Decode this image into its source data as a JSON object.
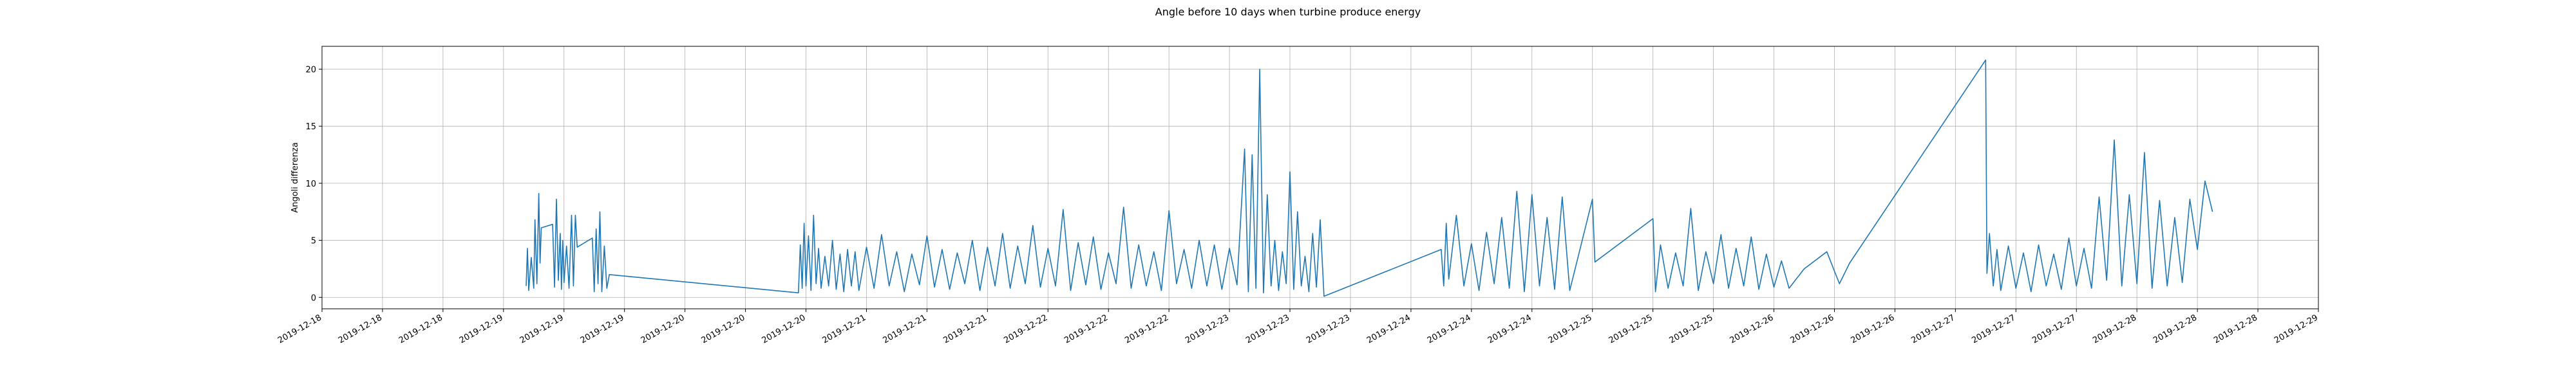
{
  "chart_data": {
    "type": "line",
    "title": "Angle before 10 days when turbine produce energy",
    "xlabel": "",
    "ylabel": "Angoli differenza",
    "grid": true,
    "line_color": "#1f77b4",
    "x_range": [
      "2019-12-18 00:00",
      "2019-12-29 00:00"
    ],
    "ylim": [
      -1,
      22
    ],
    "y_ticks": [
      0,
      5,
      10,
      15,
      20
    ],
    "x_tick_labels": [
      "2019-12-18",
      "2019-12-18",
      "2019-12-18",
      "2019-12-19",
      "2019-12-19",
      "2019-12-19",
      "2019-12-20",
      "2019-12-20",
      "2019-12-20",
      "2019-12-21",
      "2019-12-21",
      "2019-12-21",
      "2019-12-22",
      "2019-12-22",
      "2019-12-22",
      "2019-12-23",
      "2019-12-23",
      "2019-12-23",
      "2019-12-24",
      "2019-12-24",
      "2019-12-24",
      "2019-12-25",
      "2019-12-25",
      "2019-12-25",
      "2019-12-26",
      "2019-12-26",
      "2019-12-26",
      "2019-12-27",
      "2019-12-27",
      "2019-12-27",
      "2019-12-28",
      "2019-12-28",
      "2019-12-28",
      "2019-12-29"
    ],
    "series": [
      {
        "points": [
          [
            "2019-12-19 03:00",
            1.0
          ],
          [
            "2019-12-19 03:10",
            4.3
          ],
          [
            "2019-12-19 03:20",
            0.6
          ],
          [
            "2019-12-19 03:40",
            3.5
          ],
          [
            "2019-12-19 04:00",
            0.8
          ],
          [
            "2019-12-19 04:10",
            6.8
          ],
          [
            "2019-12-19 04:25",
            1.2
          ],
          [
            "2019-12-19 04:40",
            9.1
          ],
          [
            "2019-12-19 04:50",
            3.0
          ],
          [
            "2019-12-19 05:00",
            6.1
          ],
          [
            "2019-12-19 06:30",
            6.4
          ],
          [
            "2019-12-19 06:45",
            0.9
          ],
          [
            "2019-12-19 07:00",
            8.6
          ],
          [
            "2019-12-19 07:15",
            1.5
          ],
          [
            "2019-12-19 07:30",
            5.6
          ],
          [
            "2019-12-19 07:40",
            0.7
          ],
          [
            "2019-12-19 07:50",
            5.0
          ],
          [
            "2019-12-19 08:00",
            1.3
          ],
          [
            "2019-12-19 08:20",
            4.5
          ],
          [
            "2019-12-19 08:40",
            0.8
          ],
          [
            "2019-12-19 09:00",
            7.2
          ],
          [
            "2019-12-19 09:15",
            1.0
          ],
          [
            "2019-12-19 09:30",
            7.2
          ],
          [
            "2019-12-19 09:45",
            4.4
          ],
          [
            "2019-12-19 11:45",
            5.2
          ],
          [
            "2019-12-19 12:00",
            0.5
          ],
          [
            "2019-12-19 12:15",
            6.0
          ],
          [
            "2019-12-19 12:30",
            1.2
          ],
          [
            "2019-12-19 12:45",
            7.5
          ],
          [
            "2019-12-19 13:00",
            0.5
          ],
          [
            "2019-12-19 13:20",
            4.5
          ],
          [
            "2019-12-19 13:40",
            0.8
          ],
          [
            "2019-12-19 14:00",
            2.0
          ],
          [
            "2019-12-20 15:00",
            0.4
          ],
          [
            "2019-12-20 15:15",
            4.6
          ],
          [
            "2019-12-20 15:30",
            0.8
          ],
          [
            "2019-12-20 15:45",
            6.5
          ],
          [
            "2019-12-20 16:00",
            1.0
          ],
          [
            "2019-12-20 16:20",
            5.4
          ],
          [
            "2019-12-20 16:40",
            0.6
          ],
          [
            "2019-12-20 17:00",
            7.2
          ],
          [
            "2019-12-20 17:20",
            1.2
          ],
          [
            "2019-12-20 17:40",
            4.3
          ],
          [
            "2019-12-20 18:00",
            0.8
          ],
          [
            "2019-12-20 18:30",
            3.6
          ],
          [
            "2019-12-20 19:00",
            1.0
          ],
          [
            "2019-12-20 19:30",
            5.0
          ],
          [
            "2019-12-20 20:00",
            0.7
          ],
          [
            "2019-12-20 20:30",
            3.8
          ],
          [
            "2019-12-20 21:00",
            0.5
          ],
          [
            "2019-12-20 21:30",
            4.2
          ],
          [
            "2019-12-20 22:00",
            1.0
          ],
          [
            "2019-12-20 22:30",
            4.0
          ],
          [
            "2019-12-20 23:00",
            0.6
          ],
          [
            "2019-12-21 00:00",
            4.4
          ],
          [
            "2019-12-21 01:00",
            0.8
          ],
          [
            "2019-12-21 02:00",
            5.5
          ],
          [
            "2019-12-21 03:00",
            1.0
          ],
          [
            "2019-12-21 04:00",
            4.0
          ],
          [
            "2019-12-21 05:00",
            0.5
          ],
          [
            "2019-12-21 06:00",
            3.8
          ],
          [
            "2019-12-21 07:00",
            1.1
          ],
          [
            "2019-12-21 08:00",
            5.4
          ],
          [
            "2019-12-21 09:00",
            0.9
          ],
          [
            "2019-12-21 10:00",
            4.2
          ],
          [
            "2019-12-21 11:00",
            0.7
          ],
          [
            "2019-12-21 12:00",
            3.9
          ],
          [
            "2019-12-21 13:00",
            1.2
          ],
          [
            "2019-12-21 14:00",
            5.0
          ],
          [
            "2019-12-21 15:00",
            0.6
          ],
          [
            "2019-12-21 16:00",
            4.4
          ],
          [
            "2019-12-21 17:00",
            1.0
          ],
          [
            "2019-12-21 18:00",
            5.6
          ],
          [
            "2019-12-21 19:00",
            0.8
          ],
          [
            "2019-12-21 20:00",
            4.5
          ],
          [
            "2019-12-21 21:00",
            1.2
          ],
          [
            "2019-12-21 22:00",
            6.3
          ],
          [
            "2019-12-21 23:00",
            0.9
          ],
          [
            "2019-12-22 00:00",
            4.3
          ],
          [
            "2019-12-22 01:00",
            1.0
          ],
          [
            "2019-12-22 02:00",
            7.7
          ],
          [
            "2019-12-22 03:00",
            0.6
          ],
          [
            "2019-12-22 04:00",
            4.8
          ],
          [
            "2019-12-22 05:00",
            1.1
          ],
          [
            "2019-12-22 06:00",
            5.3
          ],
          [
            "2019-12-22 07:00",
            0.7
          ],
          [
            "2019-12-22 08:00",
            3.9
          ],
          [
            "2019-12-22 09:00",
            1.2
          ],
          [
            "2019-12-22 10:00",
            7.9
          ],
          [
            "2019-12-22 11:00",
            0.8
          ],
          [
            "2019-12-22 12:00",
            4.6
          ],
          [
            "2019-12-22 13:00",
            1.0
          ],
          [
            "2019-12-22 14:00",
            4.0
          ],
          [
            "2019-12-22 15:00",
            0.6
          ],
          [
            "2019-12-22 16:00",
            7.6
          ],
          [
            "2019-12-22 17:00",
            1.2
          ],
          [
            "2019-12-22 18:00",
            4.2
          ],
          [
            "2019-12-22 19:00",
            0.8
          ],
          [
            "2019-12-22 20:00",
            5.0
          ],
          [
            "2019-12-22 21:00",
            1.0
          ],
          [
            "2019-12-22 22:00",
            4.6
          ],
          [
            "2019-12-22 23:00",
            0.7
          ],
          [
            "2019-12-23 00:00",
            4.3
          ],
          [
            "2019-12-23 01:00",
            1.1
          ],
          [
            "2019-12-23 02:00",
            13.0
          ],
          [
            "2019-12-23 02:30",
            0.5
          ],
          [
            "2019-12-23 03:00",
            12.5
          ],
          [
            "2019-12-23 03:30",
            0.8
          ],
          [
            "2019-12-23 04:00",
            20.0
          ],
          [
            "2019-12-23 04:30",
            0.4
          ],
          [
            "2019-12-23 05:00",
            9.0
          ],
          [
            "2019-12-23 05:30",
            1.0
          ],
          [
            "2019-12-23 06:00",
            5.0
          ],
          [
            "2019-12-23 06:30",
            0.6
          ],
          [
            "2019-12-23 07:00",
            4.0
          ],
          [
            "2019-12-23 07:30",
            1.2
          ],
          [
            "2019-12-23 08:00",
            11.0
          ],
          [
            "2019-12-23 08:30",
            0.7
          ],
          [
            "2019-12-23 09:00",
            7.5
          ],
          [
            "2019-12-23 09:30",
            1.0
          ],
          [
            "2019-12-23 10:00",
            3.6
          ],
          [
            "2019-12-23 10:30",
            0.5
          ],
          [
            "2019-12-23 11:00",
            5.6
          ],
          [
            "2019-12-23 11:30",
            0.9
          ],
          [
            "2019-12-23 12:00",
            6.8
          ],
          [
            "2019-12-23 12:30",
            0.1
          ],
          [
            "2019-12-24 04:00",
            4.2
          ],
          [
            "2019-12-24 04:20",
            1.0
          ],
          [
            "2019-12-24 04:40",
            6.5
          ],
          [
            "2019-12-24 05:00",
            1.6
          ],
          [
            "2019-12-24 06:00",
            7.2
          ],
          [
            "2019-12-24 07:00",
            1.0
          ],
          [
            "2019-12-24 08:00",
            4.7
          ],
          [
            "2019-12-24 09:00",
            0.6
          ],
          [
            "2019-12-24 10:00",
            5.7
          ],
          [
            "2019-12-24 11:00",
            1.2
          ],
          [
            "2019-12-24 12:00",
            7.0
          ],
          [
            "2019-12-24 13:00",
            0.8
          ],
          [
            "2019-12-24 14:00",
            9.3
          ],
          [
            "2019-12-24 15:00",
            0.5
          ],
          [
            "2019-12-24 16:00",
            9.0
          ],
          [
            "2019-12-24 17:00",
            1.0
          ],
          [
            "2019-12-24 18:00",
            7.0
          ],
          [
            "2019-12-24 19:00",
            0.7
          ],
          [
            "2019-12-24 20:00",
            8.8
          ],
          [
            "2019-12-24 21:00",
            0.6
          ],
          [
            "2019-12-25 00:00",
            8.6
          ],
          [
            "2019-12-25 00:20",
            3.1
          ],
          [
            "2019-12-25 08:00",
            6.9
          ],
          [
            "2019-12-25 08:20",
            0.5
          ],
          [
            "2019-12-25 09:00",
            4.6
          ],
          [
            "2019-12-25 10:00",
            0.8
          ],
          [
            "2019-12-25 11:00",
            3.9
          ],
          [
            "2019-12-25 12:00",
            1.0
          ],
          [
            "2019-12-25 13:00",
            7.8
          ],
          [
            "2019-12-25 14:00",
            0.6
          ],
          [
            "2019-12-25 15:00",
            4.0
          ],
          [
            "2019-12-25 16:00",
            1.2
          ],
          [
            "2019-12-25 17:00",
            5.5
          ],
          [
            "2019-12-25 18:00",
            0.8
          ],
          [
            "2019-12-25 19:00",
            4.3
          ],
          [
            "2019-12-25 20:00",
            1.0
          ],
          [
            "2019-12-25 21:00",
            5.3
          ],
          [
            "2019-12-25 22:00",
            0.7
          ],
          [
            "2019-12-25 23:00",
            3.8
          ],
          [
            "2019-12-26 00:00",
            0.9
          ],
          [
            "2019-12-26 01:00",
            3.2
          ],
          [
            "2019-12-26 02:00",
            0.8
          ],
          [
            "2019-12-26 04:00",
            2.5
          ],
          [
            "2019-12-26 07:00",
            4.0
          ],
          [
            "2019-12-26 08:00",
            2.3
          ],
          [
            "2019-12-26 08:40",
            1.2
          ],
          [
            "2019-12-26 10:00",
            3.0
          ],
          [
            "2019-12-27 04:00",
            20.8
          ],
          [
            "2019-12-27 04:10",
            2.1
          ],
          [
            "2019-12-27 04:30",
            5.6
          ],
          [
            "2019-12-27 05:00",
            1.0
          ],
          [
            "2019-12-27 05:30",
            4.2
          ],
          [
            "2019-12-27 06:00",
            0.6
          ],
          [
            "2019-12-27 07:00",
            4.5
          ],
          [
            "2019-12-27 08:00",
            0.8
          ],
          [
            "2019-12-27 09:00",
            3.9
          ],
          [
            "2019-12-27 10:00",
            0.5
          ],
          [
            "2019-12-27 11:00",
            4.6
          ],
          [
            "2019-12-27 12:00",
            1.0
          ],
          [
            "2019-12-27 13:00",
            3.8
          ],
          [
            "2019-12-27 14:00",
            0.7
          ],
          [
            "2019-12-27 15:00",
            5.2
          ],
          [
            "2019-12-27 16:00",
            1.0
          ],
          [
            "2019-12-27 17:00",
            4.3
          ],
          [
            "2019-12-27 18:00",
            0.8
          ],
          [
            "2019-12-27 19:00",
            8.8
          ],
          [
            "2019-12-27 20:00",
            1.5
          ],
          [
            "2019-12-27 21:00",
            13.8
          ],
          [
            "2019-12-27 22:00",
            1.0
          ],
          [
            "2019-12-27 23:00",
            9.0
          ],
          [
            "2019-12-28 00:00",
            1.2
          ],
          [
            "2019-12-28 01:00",
            12.7
          ],
          [
            "2019-12-28 02:00",
            0.8
          ],
          [
            "2019-12-28 03:00",
            8.5
          ],
          [
            "2019-12-28 04:00",
            1.0
          ],
          [
            "2019-12-28 05:00",
            7.0
          ],
          [
            "2019-12-28 06:00",
            1.3
          ],
          [
            "2019-12-28 07:00",
            8.6
          ],
          [
            "2019-12-28 08:00",
            4.2
          ],
          [
            "2019-12-28 09:00",
            10.2
          ],
          [
            "2019-12-28 10:00",
            7.5
          ]
        ]
      }
    ]
  }
}
